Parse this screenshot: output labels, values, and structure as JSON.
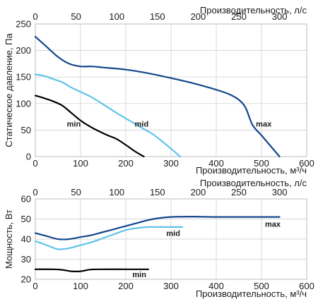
{
  "chart_data": [
    {
      "type": "line",
      "ylabel": "Статическое давление, Па",
      "xlabel": "Производительность, м³/ч",
      "x2label": "Производительность, л/с",
      "xlim": [
        0,
        600
      ],
      "ylim": [
        0,
        250
      ],
      "x2lim": [
        0,
        333.3
      ],
      "xticks": [
        "0",
        "100",
        "200",
        "300",
        "400",
        "500",
        "600"
      ],
      "yticks": [
        "0",
        "50",
        "100",
        "150",
        "200",
        "250"
      ],
      "x2ticks": [
        "0",
        "50",
        "100",
        "150",
        "200",
        "250",
        "300"
      ],
      "grid": true,
      "series": [
        {
          "name": "min",
          "color": "#000000",
          "label_at": [
            85,
            62
          ],
          "x": [
            0,
            20,
            40,
            60,
            80,
            100,
            120,
            140,
            160,
            180,
            200,
            220,
            240
          ],
          "y": [
            115,
            110,
            104,
            96,
            82,
            68,
            57,
            48,
            40,
            33,
            22,
            10,
            0
          ]
        },
        {
          "name": "mid",
          "color": "#5ec3ea",
          "label_at": [
            235,
            62
          ],
          "x": [
            0,
            20,
            40,
            60,
            80,
            100,
            120,
            140,
            160,
            180,
            200,
            220,
            240,
            260,
            280,
            300,
            320
          ],
          "y": [
            155,
            152,
            146,
            140,
            130,
            122,
            114,
            104,
            93,
            82,
            72,
            62,
            52,
            42,
            29,
            15,
            0
          ]
        },
        {
          "name": "max",
          "color": "#14478c",
          "label_at": [
            505,
            62
          ],
          "x": [
            0,
            25,
            50,
            75,
            100,
            125,
            150,
            200,
            250,
            300,
            350,
            400,
            430,
            450,
            465,
            480,
            500,
            520,
            540
          ],
          "y": [
            226,
            207,
            188,
            175,
            170,
            170,
            168,
            164,
            157,
            148,
            138,
            126,
            117,
            107,
            92,
            60,
            40,
            20,
            0
          ]
        }
      ]
    },
    {
      "type": "line",
      "ylabel": "Мощность, Вт",
      "xlabel": "Производительность, м³/ч",
      "x2label": "Производительность, л/с",
      "xlim": [
        0,
        600
      ],
      "ylim": [
        20,
        60
      ],
      "x2lim": [
        0,
        333.3
      ],
      "xticks": [
        "0",
        "100",
        "200",
        "300",
        "400",
        "500",
        "600"
      ],
      "yticks": [
        "20",
        "30",
        "40",
        "50",
        "60"
      ],
      "x2ticks": [
        "0",
        "50",
        "100",
        "150",
        "200",
        "250",
        "300"
      ],
      "grid": true,
      "series": [
        {
          "name": "min",
          "color": "#000000",
          "label_at": [
            230,
            22.5
          ],
          "x": [
            0,
            40,
            60,
            80,
            100,
            120,
            140,
            200,
            250
          ],
          "y": [
            25,
            25,
            24.7,
            24,
            24,
            24.8,
            25,
            25,
            25
          ]
        },
        {
          "name": "mid",
          "color": "#5ec3ea",
          "label_at": [
            305,
            43
          ],
          "x": [
            0,
            25,
            50,
            75,
            100,
            125,
            150,
            175,
            200,
            225,
            250,
            275,
            300,
            325
          ],
          "y": [
            39,
            37,
            35,
            35.5,
            37,
            38.5,
            40.5,
            42.5,
            44.5,
            45.5,
            46,
            46,
            46,
            46
          ]
        },
        {
          "name": "max",
          "color": "#14478c",
          "label_at": [
            525,
            47.5
          ],
          "x": [
            0,
            25,
            50,
            75,
            100,
            125,
            150,
            175,
            200,
            225,
            250,
            275,
            300,
            350,
            400,
            450,
            500,
            540
          ],
          "y": [
            43,
            41.5,
            40,
            40,
            41,
            42,
            43.5,
            45,
            46.5,
            48,
            49.5,
            50.5,
            51,
            51.2,
            51,
            51,
            51,
            51
          ]
        }
      ]
    }
  ]
}
